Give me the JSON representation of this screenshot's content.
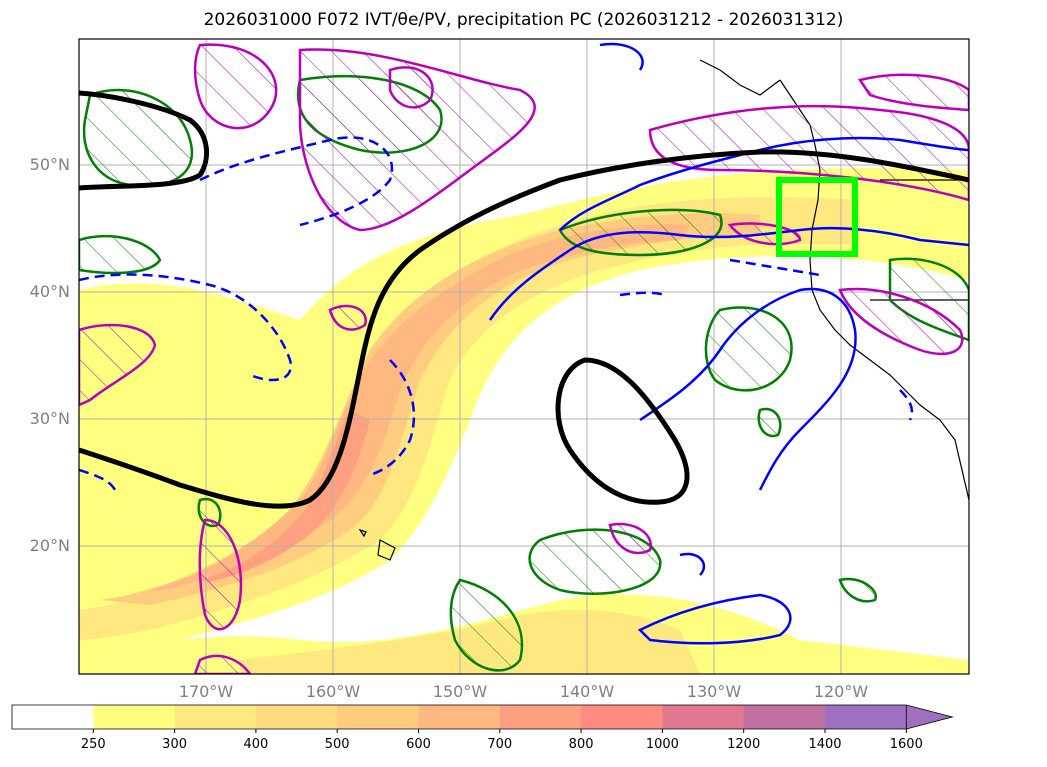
{
  "title": "2026031000 F072 IVT/θe/PV, precipitation PC (2026031212 - 2026031312)",
  "map": {
    "lat_labels": [
      "50°N",
      "40°N",
      "30°N",
      "20°N"
    ],
    "lon_labels": [
      "170°W",
      "160°W",
      "150°W",
      "140°W",
      "130°W",
      "120°W"
    ],
    "contour_colors": {
      "thick": "#000000",
      "theta_e": "#0000ff",
      "pv": "#bb00bb",
      "precip_pc": "#008000",
      "target_box": "#00ff00"
    }
  },
  "colorbar": {
    "ticks": [
      "250",
      "300",
      "400",
      "500",
      "600",
      "700",
      "800",
      "1000",
      "1200",
      "1400",
      "1600"
    ],
    "colors": [
      "#ffffff",
      "#ffff80",
      "#ffe880",
      "#ffdc80",
      "#ffcc80",
      "#ffb880",
      "#ffa080",
      "#ff8c80",
      "#e07890",
      "#c070a0",
      "#a070c0"
    ],
    "extend": "max"
  }
}
